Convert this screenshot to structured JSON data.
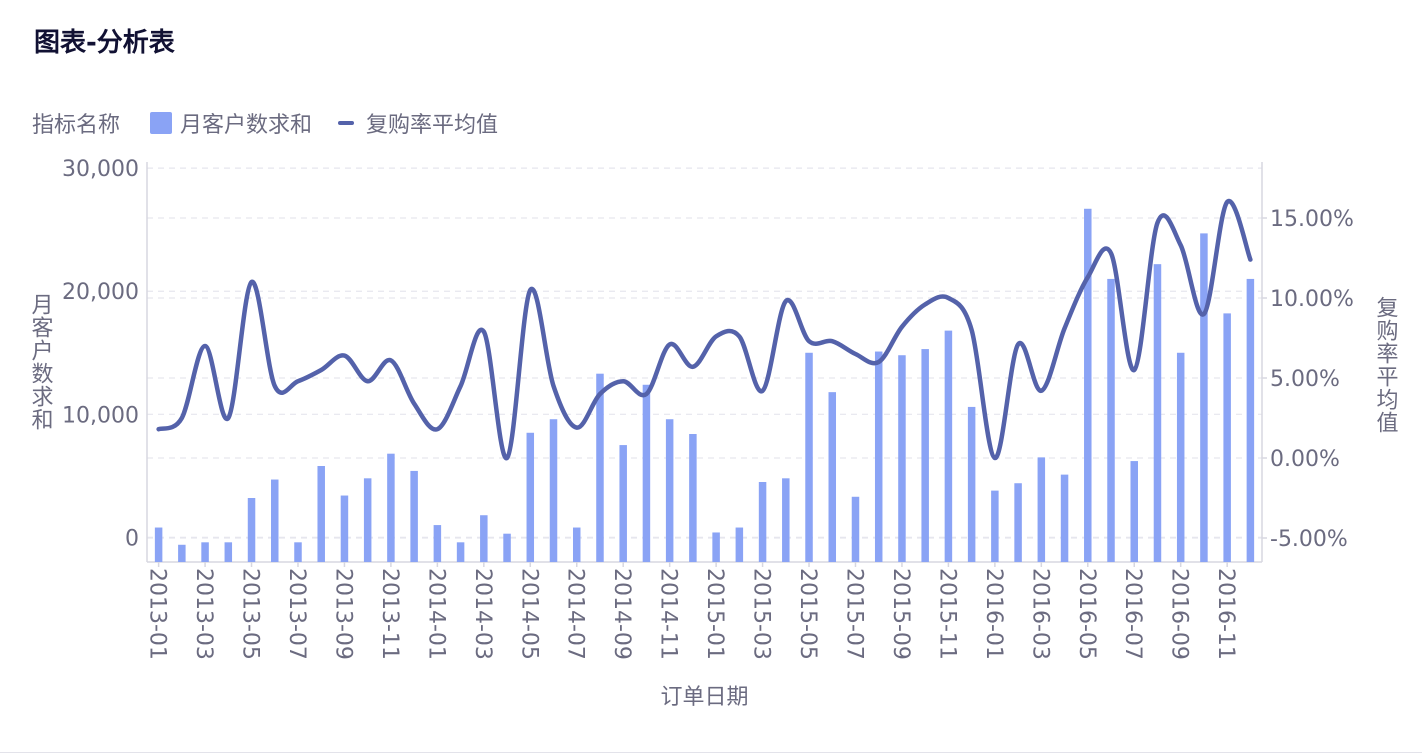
{
  "header": {
    "title": "图表-分析表"
  },
  "legend": {
    "title": "指标名称",
    "bar_label": "月客户数求和",
    "line_label": "复购率平均值"
  },
  "colors": {
    "bar": "#8aa3f5",
    "line": "#5462aa",
    "axis": "#d7d7e0",
    "grid": "#e6e6ee",
    "text": "#6b6b80"
  },
  "chart_data": {
    "type": "bar",
    "xlabel": "订单日期",
    "ylabel_left": "月客户数求和",
    "ylabel_right": "复购率平均值",
    "ylim_left": [
      -2000,
      30500
    ],
    "ylim_right": [
      -6.5,
      18.5
    ],
    "ticks_left": [
      0,
      10000,
      20000,
      30000
    ],
    "tick_labels_left": [
      "0",
      "10,000",
      "20,000",
      "30,000"
    ],
    "ticks_right": [
      -5,
      0,
      5,
      10,
      15
    ],
    "tick_labels_right": [
      "-5.00%",
      "0.00%",
      "5.00%",
      "10.00%",
      "15.00%"
    ],
    "grid": true,
    "legend_position": "top-left",
    "categories": [
      "2013-01",
      "2013-02",
      "2013-03",
      "2013-04",
      "2013-05",
      "2013-06",
      "2013-07",
      "2013-08",
      "2013-09",
      "2013-10",
      "2013-11",
      "2013-12",
      "2014-01",
      "2014-02",
      "2014-03",
      "2014-04",
      "2014-05",
      "2014-06",
      "2014-07",
      "2014-08",
      "2014-09",
      "2014-10",
      "2014-11",
      "2014-12",
      "2015-01",
      "2015-02",
      "2015-03",
      "2015-04",
      "2015-05",
      "2015-06",
      "2015-07",
      "2015-08",
      "2015-09",
      "2015-10",
      "2015-11",
      "2015-12",
      "2016-01",
      "2016-02",
      "2016-03",
      "2016-04",
      "2016-05",
      "2016-06",
      "2016-07",
      "2016-08",
      "2016-09",
      "2016-10",
      "2016-11",
      "2016-12"
    ],
    "tick_label_categories": [
      "2013-01",
      "2013-03",
      "2013-05",
      "2013-07",
      "2013-09",
      "2013-11",
      "2014-01",
      "2014-03",
      "2014-05",
      "2014-07",
      "2014-09",
      "2014-11",
      "2015-01",
      "2015-03",
      "2015-05",
      "2015-07",
      "2015-09",
      "2015-11",
      "2016-01",
      "2016-03",
      "2016-05",
      "2016-07",
      "2016-09",
      "2016-11"
    ],
    "series": [
      {
        "name": "月客户数求和",
        "type": "bar",
        "axis": "left",
        "values": [
          800,
          -600,
          -400,
          -400,
          3200,
          4700,
          -400,
          5800,
          3400,
          4800,
          6800,
          5400,
          1000,
          -400,
          1800,
          300,
          8500,
          9600,
          800,
          13300,
          7500,
          12400,
          9600,
          8400,
          400,
          800,
          4500,
          4800,
          15000,
          11800,
          3300,
          15100,
          14800,
          15300,
          16800,
          10600,
          3800,
          4400,
          6500,
          5100,
          26700,
          21000,
          6200,
          22200,
          15000,
          24700,
          18200,
          21000
        ]
      },
      {
        "name": "复购率平均值",
        "type": "line",
        "axis": "right",
        "values": [
          1.8,
          2.5,
          7.0,
          2.5,
          11.0,
          4.5,
          4.8,
          5.5,
          6.4,
          4.8,
          6.1,
          3.4,
          1.8,
          4.5,
          7.9,
          0.0,
          10.5,
          4.5,
          1.9,
          4.0,
          4.8,
          4.0,
          7.1,
          5.7,
          7.6,
          7.6,
          4.2,
          9.8,
          7.3,
          7.3,
          6.5,
          6.0,
          8.2,
          9.6,
          10.0,
          8.0,
          0.0,
          7.1,
          4.2,
          8.1,
          11.3,
          12.8,
          5.5,
          14.7,
          13.3,
          9.0,
          16.0,
          12.4
        ]
      }
    ]
  }
}
